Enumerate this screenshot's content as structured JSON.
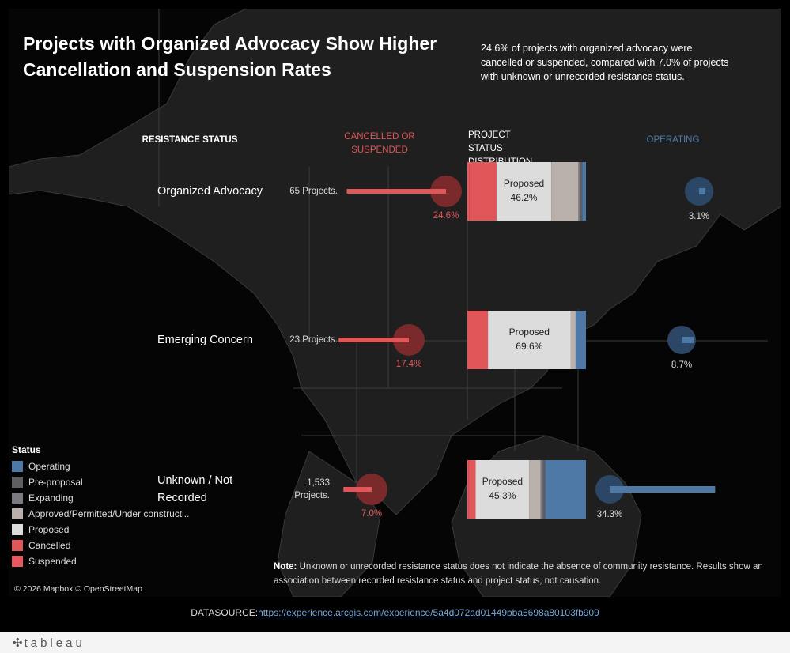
{
  "title": "Projects with Organized Advocacy Show Higher Cancellation and Suspension Rates",
  "subtitle": "24.6% of projects with organized advocacy were cancelled or suspended, compared with 7.0% of projects with unknown or unrecorded resistance status.",
  "headers": {
    "resistance": "RESISTANCE STATUS",
    "cancelled": "CANCELLED OR SUSPENDED",
    "distribution": "PROJECT STATUS DISTRIBUTION",
    "operating": "OPERATING"
  },
  "chart_data": {
    "type": "bar",
    "categories": [
      "Organized Advocacy",
      "Emerging Concern",
      "Unknown / Not Recorded"
    ],
    "project_counts": [
      "65 Projects.",
      "23 Projects.",
      "1,533 Projects."
    ],
    "cancelled_or_suspended_pct": [
      24.6,
      17.4,
      7.0
    ],
    "cancelled_or_suspended_labels": [
      "24.6%",
      "17.4%",
      "7.0%"
    ],
    "operating_pct": [
      3.1,
      8.7,
      34.3
    ],
    "operating_labels": [
      "3.1%",
      "8.7%",
      "34.3%"
    ],
    "proposed_labels": [
      "Proposed\n46.2%",
      "Proposed\n69.6%",
      "Proposed\n45.3%"
    ],
    "status_distribution": [
      {
        "category": "Organized Advocacy",
        "segments": [
          {
            "status": "Suspended",
            "value": 1.5
          },
          {
            "status": "Cancelled",
            "value": 23.1
          },
          {
            "status": "Proposed",
            "value": 46.2
          },
          {
            "status": "Approved/Permitted/Under construction",
            "value": 22.8
          },
          {
            "status": "Expanding",
            "value": 1.5
          },
          {
            "status": "Pre-proposal",
            "value": 1.8
          },
          {
            "status": "Operating",
            "value": 3.1
          }
        ]
      },
      {
        "category": "Emerging Concern",
        "segments": [
          {
            "status": "Suspended",
            "value": 0
          },
          {
            "status": "Cancelled",
            "value": 17.4
          },
          {
            "status": "Proposed",
            "value": 69.6
          },
          {
            "status": "Approved/Permitted/Under construction",
            "value": 4.3
          },
          {
            "status": "Expanding",
            "value": 0
          },
          {
            "status": "Pre-proposal",
            "value": 0
          },
          {
            "status": "Operating",
            "value": 8.7
          }
        ]
      },
      {
        "category": "Unknown / Not Recorded",
        "segments": [
          {
            "status": "Suspended",
            "value": 0.9
          },
          {
            "status": "Cancelled",
            "value": 6.1
          },
          {
            "status": "Proposed",
            "value": 45.3
          },
          {
            "status": "Approved/Permitted/Under construction",
            "value": 9.7
          },
          {
            "status": "Expanding",
            "value": 1.9
          },
          {
            "status": "Pre-proposal",
            "value": 2.0
          },
          {
            "status": "Operating",
            "value": 34.3
          }
        ]
      }
    ],
    "legend_placement": "bottom-left"
  },
  "legend": {
    "title": "Status",
    "items": [
      {
        "label": "Operating",
        "color": "#4e79a7"
      },
      {
        "label": "Pre-proposal",
        "color": "#5f5f63"
      },
      {
        "label": "Expanding",
        "color": "#7a7a80"
      },
      {
        "label": "Approved/Permitted/Under constructi..",
        "color": "#bab0ac"
      },
      {
        "label": "Proposed",
        "color": "#dcdcdc"
      },
      {
        "label": "Cancelled",
        "color": "#e15759"
      },
      {
        "label": "Suspended",
        "color": "#e8585e"
      }
    ]
  },
  "colors": {
    "cancelled": "#e15759",
    "cancelled_dark": "#7a2a2a",
    "operating": "#4e79a7",
    "operating_dark": "#2c4766"
  },
  "note": {
    "label": "Note:",
    "text": " Unknown or unrecorded resistance status does not indicate the absence of community resistance. Results show an association between recorded resistance status and project status, not causation."
  },
  "copyright": "© 2026 Mapbox © OpenStreetMap",
  "datasource": {
    "label": "DATASOURCE:",
    "link": "https://experience.arcgis.com/experience/5a4d072ad01449bba5698a80103fb909"
  },
  "footer": {
    "logo": "tableau"
  }
}
